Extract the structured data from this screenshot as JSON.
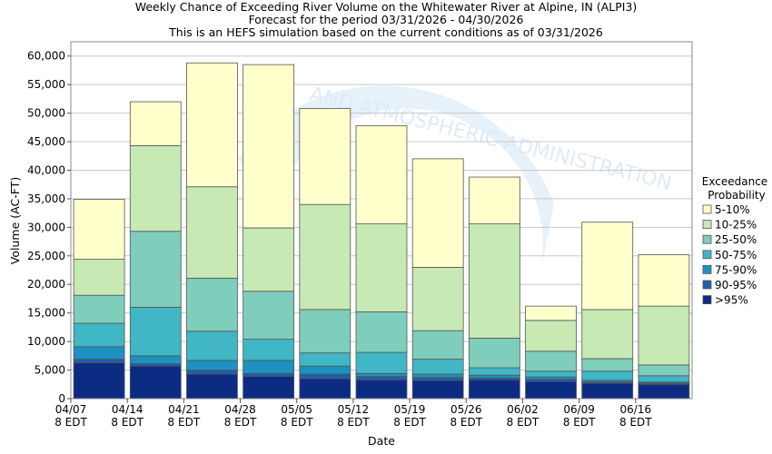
{
  "chart_data": {
    "type": "bar",
    "stacked": true,
    "title": "Weekly Chance of Exceeding River Volume on the Whitewater River at Alpine, IN (ALPI3)",
    "subtitle_1": "Forecast for the period 03/31/2026 - 04/30/2026",
    "subtitle_2": "This is an HEFS simulation based on the current conditions as of 03/31/2026",
    "xlabel": "Date",
    "ylabel": "Volume (AC-FT)",
    "ylim": [
      0,
      62500
    ],
    "yticks": [
      0,
      5000,
      10000,
      15000,
      20000,
      25000,
      30000,
      35000,
      40000,
      45000,
      50000,
      55000,
      60000
    ],
    "ytick_labels": [
      "0",
      "5,000",
      "10,000",
      "15,000",
      "20,000",
      "25,000",
      "30,000",
      "35,000",
      "40,000",
      "45,000",
      "50,000",
      "55,000",
      "60,000"
    ],
    "xtick_labels": [
      {
        "date": "04/07",
        "time": "8 EDT"
      },
      {
        "date": "04/14",
        "time": "8 EDT"
      },
      {
        "date": "04/21",
        "time": "8 EDT"
      },
      {
        "date": "04/28",
        "time": "8 EDT"
      },
      {
        "date": "05/05",
        "time": "8 EDT"
      },
      {
        "date": "05/12",
        "time": "8 EDT"
      },
      {
        "date": "05/19",
        "time": "8 EDT"
      },
      {
        "date": "05/26",
        "time": "8 EDT"
      },
      {
        "date": "06/02",
        "time": "8 EDT"
      },
      {
        "date": "06/09",
        "time": "8 EDT"
      },
      {
        "date": "06/16",
        "time": "8 EDT"
      }
    ],
    "grid": true,
    "legend_title_1": "Exceedance",
    "legend_title_2": "Probability",
    "legend_position": "right",
    "legend": [
      {
        "label": "5-10%",
        "color": "#FFFFCC"
      },
      {
        "label": "10-25%",
        "color": "#C7E9B4"
      },
      {
        "label": "25-50%",
        "color": "#7FCDBB"
      },
      {
        "label": "50-75%",
        "color": "#41B6C4"
      },
      {
        "label": "75-90%",
        "color": "#1D91C0"
      },
      {
        "label": "90-95%",
        "color": "#225EA8"
      },
      {
        "label": ">95%",
        "color": "#0C2C84"
      }
    ],
    "bars": [
      {
        "category": "04/07",
        "levels": [
          6300,
          6900,
          9100,
          13200,
          18100,
          24400,
          34900
        ]
      },
      {
        "category": "04/14",
        "levels": [
          5700,
          6100,
          7500,
          16000,
          29300,
          44300,
          52000
        ]
      },
      {
        "category": "04/21",
        "levels": [
          4300,
          5000,
          6700,
          11800,
          21100,
          37100,
          58800
        ]
      },
      {
        "category": "04/28",
        "levels": [
          3900,
          4400,
          6700,
          10400,
          18800,
          29900,
          58500
        ]
      },
      {
        "category": "05/05",
        "levels": [
          3500,
          4300,
          5700,
          8000,
          15600,
          34000,
          50800
        ]
      },
      {
        "category": "05/12",
        "levels": [
          3300,
          3900,
          4400,
          8100,
          15200,
          30600,
          47800
        ]
      },
      {
        "category": "05/19",
        "levels": [
          3200,
          3700,
          4300,
          6900,
          11900,
          23000,
          42000
        ]
      },
      {
        "category": "05/26",
        "levels": [
          3300,
          3600,
          4100,
          5400,
          10600,
          30600,
          38800
        ]
      },
      {
        "category": "06/02",
        "levels": [
          3000,
          3400,
          3800,
          4800,
          8300,
          13700,
          16200
        ]
      },
      {
        "category": "06/09",
        "levels": [
          2700,
          2900,
          3200,
          4800,
          7000,
          15600,
          30900
        ]
      },
      {
        "category": "06/16",
        "levels": [
          2500,
          2700,
          2900,
          4000,
          5900,
          16200,
          25200
        ]
      }
    ],
    "watermark": "AND ATMOSPHERIC ADMINISTRATION"
  }
}
